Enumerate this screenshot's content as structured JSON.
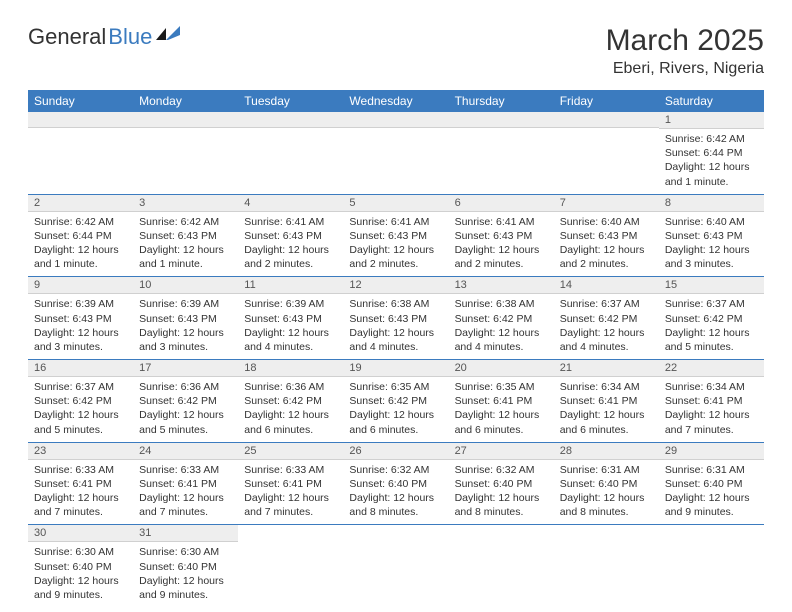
{
  "brand": {
    "part1": "General",
    "part2": "Blue"
  },
  "title": "March 2025",
  "location": "Eberi, Rivers, Nigeria",
  "colors": {
    "header_bg": "#3b7bbf",
    "header_text": "#ffffff",
    "daynum_bg": "#eeeeee",
    "row_border": "#3b7bbf",
    "text": "#333333"
  },
  "weekdays": [
    "Sunday",
    "Monday",
    "Tuesday",
    "Wednesday",
    "Thursday",
    "Friday",
    "Saturday"
  ],
  "weeks": [
    [
      {
        "empty": true
      },
      {
        "empty": true
      },
      {
        "empty": true
      },
      {
        "empty": true
      },
      {
        "empty": true
      },
      {
        "empty": true
      },
      {
        "num": "1",
        "sunrise": "Sunrise: 6:42 AM",
        "sunset": "Sunset: 6:44 PM",
        "daylight": "Daylight: 12 hours and 1 minute."
      }
    ],
    [
      {
        "num": "2",
        "sunrise": "Sunrise: 6:42 AM",
        "sunset": "Sunset: 6:44 PM",
        "daylight": "Daylight: 12 hours and 1 minute."
      },
      {
        "num": "3",
        "sunrise": "Sunrise: 6:42 AM",
        "sunset": "Sunset: 6:43 PM",
        "daylight": "Daylight: 12 hours and 1 minute."
      },
      {
        "num": "4",
        "sunrise": "Sunrise: 6:41 AM",
        "sunset": "Sunset: 6:43 PM",
        "daylight": "Daylight: 12 hours and 2 minutes."
      },
      {
        "num": "5",
        "sunrise": "Sunrise: 6:41 AM",
        "sunset": "Sunset: 6:43 PM",
        "daylight": "Daylight: 12 hours and 2 minutes."
      },
      {
        "num": "6",
        "sunrise": "Sunrise: 6:41 AM",
        "sunset": "Sunset: 6:43 PM",
        "daylight": "Daylight: 12 hours and 2 minutes."
      },
      {
        "num": "7",
        "sunrise": "Sunrise: 6:40 AM",
        "sunset": "Sunset: 6:43 PM",
        "daylight": "Daylight: 12 hours and 2 minutes."
      },
      {
        "num": "8",
        "sunrise": "Sunrise: 6:40 AM",
        "sunset": "Sunset: 6:43 PM",
        "daylight": "Daylight: 12 hours and 3 minutes."
      }
    ],
    [
      {
        "num": "9",
        "sunrise": "Sunrise: 6:39 AM",
        "sunset": "Sunset: 6:43 PM",
        "daylight": "Daylight: 12 hours and 3 minutes."
      },
      {
        "num": "10",
        "sunrise": "Sunrise: 6:39 AM",
        "sunset": "Sunset: 6:43 PM",
        "daylight": "Daylight: 12 hours and 3 minutes."
      },
      {
        "num": "11",
        "sunrise": "Sunrise: 6:39 AM",
        "sunset": "Sunset: 6:43 PM",
        "daylight": "Daylight: 12 hours and 4 minutes."
      },
      {
        "num": "12",
        "sunrise": "Sunrise: 6:38 AM",
        "sunset": "Sunset: 6:43 PM",
        "daylight": "Daylight: 12 hours and 4 minutes."
      },
      {
        "num": "13",
        "sunrise": "Sunrise: 6:38 AM",
        "sunset": "Sunset: 6:42 PM",
        "daylight": "Daylight: 12 hours and 4 minutes."
      },
      {
        "num": "14",
        "sunrise": "Sunrise: 6:37 AM",
        "sunset": "Sunset: 6:42 PM",
        "daylight": "Daylight: 12 hours and 4 minutes."
      },
      {
        "num": "15",
        "sunrise": "Sunrise: 6:37 AM",
        "sunset": "Sunset: 6:42 PM",
        "daylight": "Daylight: 12 hours and 5 minutes."
      }
    ],
    [
      {
        "num": "16",
        "sunrise": "Sunrise: 6:37 AM",
        "sunset": "Sunset: 6:42 PM",
        "daylight": "Daylight: 12 hours and 5 minutes."
      },
      {
        "num": "17",
        "sunrise": "Sunrise: 6:36 AM",
        "sunset": "Sunset: 6:42 PM",
        "daylight": "Daylight: 12 hours and 5 minutes."
      },
      {
        "num": "18",
        "sunrise": "Sunrise: 6:36 AM",
        "sunset": "Sunset: 6:42 PM",
        "daylight": "Daylight: 12 hours and 6 minutes."
      },
      {
        "num": "19",
        "sunrise": "Sunrise: 6:35 AM",
        "sunset": "Sunset: 6:42 PM",
        "daylight": "Daylight: 12 hours and 6 minutes."
      },
      {
        "num": "20",
        "sunrise": "Sunrise: 6:35 AM",
        "sunset": "Sunset: 6:41 PM",
        "daylight": "Daylight: 12 hours and 6 minutes."
      },
      {
        "num": "21",
        "sunrise": "Sunrise: 6:34 AM",
        "sunset": "Sunset: 6:41 PM",
        "daylight": "Daylight: 12 hours and 6 minutes."
      },
      {
        "num": "22",
        "sunrise": "Sunrise: 6:34 AM",
        "sunset": "Sunset: 6:41 PM",
        "daylight": "Daylight: 12 hours and 7 minutes."
      }
    ],
    [
      {
        "num": "23",
        "sunrise": "Sunrise: 6:33 AM",
        "sunset": "Sunset: 6:41 PM",
        "daylight": "Daylight: 12 hours and 7 minutes."
      },
      {
        "num": "24",
        "sunrise": "Sunrise: 6:33 AM",
        "sunset": "Sunset: 6:41 PM",
        "daylight": "Daylight: 12 hours and 7 minutes."
      },
      {
        "num": "25",
        "sunrise": "Sunrise: 6:33 AM",
        "sunset": "Sunset: 6:41 PM",
        "daylight": "Daylight: 12 hours and 7 minutes."
      },
      {
        "num": "26",
        "sunrise": "Sunrise: 6:32 AM",
        "sunset": "Sunset: 6:40 PM",
        "daylight": "Daylight: 12 hours and 8 minutes."
      },
      {
        "num": "27",
        "sunrise": "Sunrise: 6:32 AM",
        "sunset": "Sunset: 6:40 PM",
        "daylight": "Daylight: 12 hours and 8 minutes."
      },
      {
        "num": "28",
        "sunrise": "Sunrise: 6:31 AM",
        "sunset": "Sunset: 6:40 PM",
        "daylight": "Daylight: 12 hours and 8 minutes."
      },
      {
        "num": "29",
        "sunrise": "Sunrise: 6:31 AM",
        "sunset": "Sunset: 6:40 PM",
        "daylight": "Daylight: 12 hours and 9 minutes."
      }
    ],
    [
      {
        "num": "30",
        "sunrise": "Sunrise: 6:30 AM",
        "sunset": "Sunset: 6:40 PM",
        "daylight": "Daylight: 12 hours and 9 minutes."
      },
      {
        "num": "31",
        "sunrise": "Sunrise: 6:30 AM",
        "sunset": "Sunset: 6:40 PM",
        "daylight": "Daylight: 12 hours and 9 minutes."
      },
      {
        "empty": true
      },
      {
        "empty": true
      },
      {
        "empty": true
      },
      {
        "empty": true
      },
      {
        "empty": true
      }
    ]
  ]
}
